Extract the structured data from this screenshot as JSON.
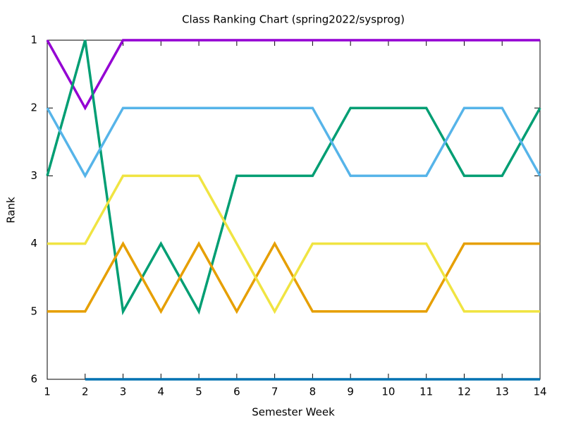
{
  "chart_data": {
    "type": "line",
    "title": "Class Ranking Chart (spring2022/sysprog)",
    "xlabel": "Semester Week",
    "ylabel": "Rank",
    "x": [
      1,
      2,
      3,
      4,
      5,
      6,
      7,
      8,
      9,
      10,
      11,
      12,
      13,
      14
    ],
    "series": [
      {
        "color": "#9400d3",
        "values": [
          1,
          2,
          1,
          1,
          1,
          1,
          1,
          1,
          1,
          1,
          1,
          1,
          1,
          1
        ]
      },
      {
        "color": "#009e73",
        "values": [
          3,
          1,
          5,
          4,
          5,
          3,
          3,
          3,
          2,
          2,
          2,
          3,
          3,
          2
        ]
      },
      {
        "color": "#56b4e9",
        "values": [
          2,
          3,
          2,
          2,
          2,
          2,
          2,
          2,
          3,
          3,
          3,
          2,
          2,
          3
        ]
      },
      {
        "color": "#e69f00",
        "values": [
          5,
          5,
          4,
          5,
          4,
          5,
          4,
          5,
          5,
          5,
          5,
          4,
          4,
          4
        ]
      },
      {
        "color": "#f0e442",
        "values": [
          4,
          4,
          3,
          3,
          3,
          4,
          5,
          4,
          4,
          4,
          4,
          5,
          5,
          5
        ]
      },
      {
        "color": "#0072b2",
        "values": [
          null,
          6,
          6,
          6,
          6,
          6,
          6,
          6,
          6,
          6,
          6,
          6,
          6,
          6
        ]
      }
    ],
    "xlim": [
      1,
      14
    ],
    "xticks": [
      1,
      2,
      3,
      4,
      5,
      6,
      7,
      8,
      9,
      10,
      11,
      12,
      13,
      14
    ],
    "ylim": [
      1,
      6
    ],
    "yticks": [
      1,
      2,
      3,
      4,
      5,
      6
    ],
    "y_reversed": true,
    "grid": false
  }
}
